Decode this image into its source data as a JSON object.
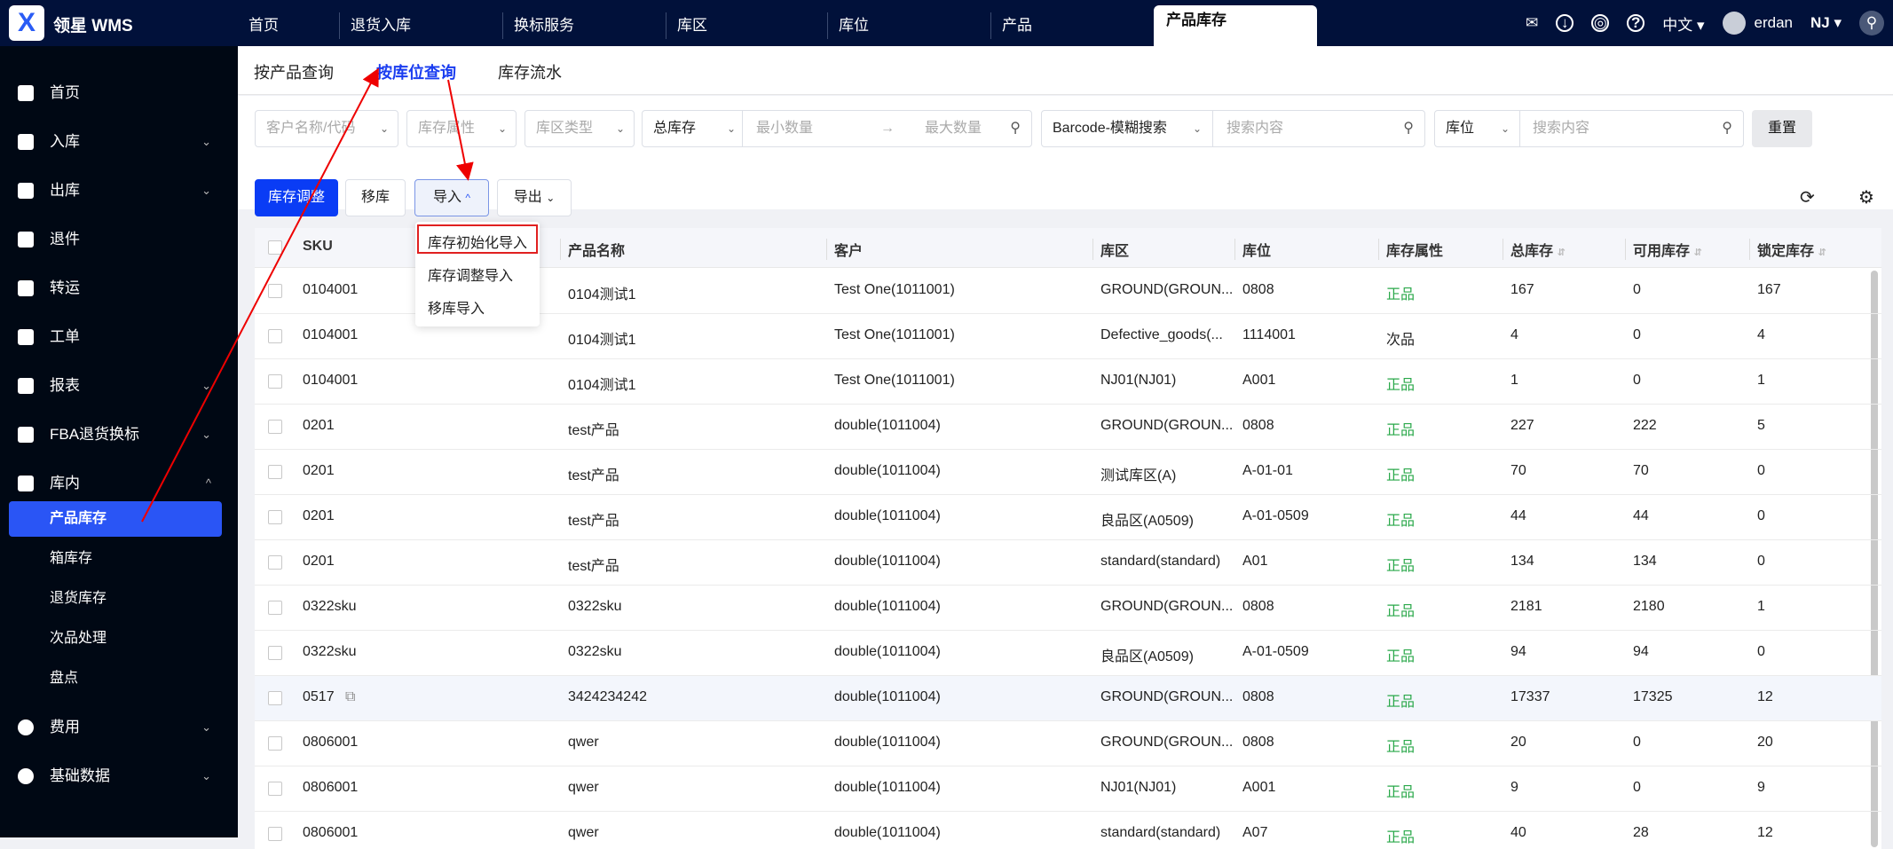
{
  "brand": {
    "logo": "X",
    "name": "领星 WMS"
  },
  "nav_tabs": [
    "首页",
    "退货入库",
    "换标服务",
    "库区",
    "库位",
    "产品",
    "产品库存"
  ],
  "topbar": {
    "language": "中文",
    "user": "erdan",
    "warehouse": "NJ"
  },
  "sidebar": {
    "items": [
      {
        "label": "首页"
      },
      {
        "label": "入库"
      },
      {
        "label": "出库"
      },
      {
        "label": "退件"
      },
      {
        "label": "转运"
      },
      {
        "label": "工单"
      },
      {
        "label": "报表"
      },
      {
        "label": "FBA退货换标"
      },
      {
        "label": "库内"
      }
    ],
    "sub_items": [
      "产品库存",
      "箱库存",
      "退货库存",
      "次品处理",
      "盘点"
    ],
    "after": [
      {
        "label": "费用"
      },
      {
        "label": "基础数据"
      }
    ]
  },
  "subtabs": [
    "按产品查询",
    "按库位查询",
    "库存流水"
  ],
  "filters": {
    "customer": "客户名称/代码",
    "attr": "库存属性",
    "zone_type": "库区类型",
    "qty_type": "总库存",
    "min": "最小数量",
    "max": "最大数量",
    "barcode": "Barcode-模糊搜索",
    "search1": "搜索内容",
    "loc": "库位",
    "search2": "搜索内容",
    "reset": "重置"
  },
  "toolbar": {
    "adjust": "库存调整",
    "move": "移库",
    "import": "导入",
    "export": "导出"
  },
  "import_menu": [
    "库存初始化导入",
    "库存调整导入",
    "移库导入"
  ],
  "columns": [
    "SKU",
    "产品名称",
    "客户",
    "库区",
    "库位",
    "库存属性",
    "总库存",
    "可用库存",
    "锁定库存"
  ],
  "colors": {
    "accent": "#0a3cf5",
    "good": "#2aa84a",
    "topbar": "#01113a"
  },
  "rows": [
    [
      "0104001",
      "0104测试1",
      "Test One(1011001)",
      "GROUND(GROUN...",
      "0808",
      "正品",
      "167",
      "0",
      "167"
    ],
    [
      "0104001",
      "0104测试1",
      "Test One(1011001)",
      "Defective_goods(...",
      "1114001",
      "次品",
      "4",
      "0",
      "4"
    ],
    [
      "0104001",
      "0104测试1",
      "Test One(1011001)",
      "NJ01(NJ01)",
      "A001",
      "正品",
      "1",
      "0",
      "1"
    ],
    [
      "0201",
      "test产品",
      "double(1011004)",
      "GROUND(GROUN...",
      "0808",
      "正品",
      "227",
      "222",
      "5"
    ],
    [
      "0201",
      "test产品",
      "double(1011004)",
      "测试库区(A)",
      "A-01-01",
      "正品",
      "70",
      "70",
      "0"
    ],
    [
      "0201",
      "test产品",
      "double(1011004)",
      "良品区(A0509)",
      "A-01-0509",
      "正品",
      "44",
      "44",
      "0"
    ],
    [
      "0201",
      "test产品",
      "double(1011004)",
      "standard(standard)",
      "A01",
      "正品",
      "134",
      "134",
      "0"
    ],
    [
      "0322sku",
      "0322sku",
      "double(1011004)",
      "GROUND(GROUN...",
      "0808",
      "正品",
      "2181",
      "2180",
      "1"
    ],
    [
      "0322sku",
      "0322sku",
      "double(1011004)",
      "良品区(A0509)",
      "A-01-0509",
      "正品",
      "94",
      "94",
      "0"
    ],
    [
      "0517",
      "3424234242",
      "double(1011004)",
      "GROUND(GROUN...",
      "0808",
      "正品",
      "17337",
      "17325",
      "12"
    ],
    [
      "0806001",
      "qwer",
      "double(1011004)",
      "GROUND(GROUN...",
      "0808",
      "正品",
      "20",
      "0",
      "20"
    ],
    [
      "0806001",
      "qwer",
      "double(1011004)",
      "NJ01(NJ01)",
      "A001",
      "正品",
      "9",
      "0",
      "9"
    ],
    [
      "0806001",
      "qwer",
      "double(1011004)",
      "standard(standard)",
      "A07",
      "正品",
      "40",
      "28",
      "12"
    ]
  ]
}
